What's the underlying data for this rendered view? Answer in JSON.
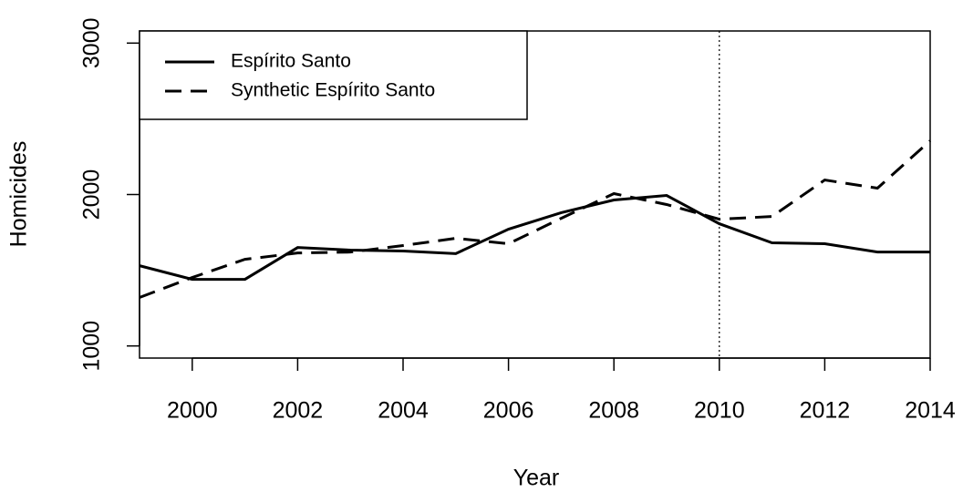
{
  "chart_data": {
    "type": "line",
    "x_label": "Year",
    "y_label": "Homicides",
    "x": [
      1999,
      2000,
      2001,
      2002,
      2003,
      2004,
      2005,
      2006,
      2007,
      2008,
      2009,
      2010,
      2011,
      2012,
      2013,
      2014
    ],
    "series": [
      {
        "name": "Espírito Santo",
        "color": "#000000",
        "linestyle": "solid",
        "values": [
          1530,
          1440,
          1440,
          1650,
          1633,
          1627,
          1610,
          1771,
          1880,
          1964,
          1994,
          1807,
          1681,
          1675,
          1620,
          1620
        ]
      },
      {
        "name": "Synthetic Espírito Santo",
        "color": "#000000",
        "linestyle": "dashed",
        "values": [
          1320,
          1452,
          1572,
          1614,
          1620,
          1663,
          1711,
          1675,
          1843,
          2006,
          1934,
          1837,
          1855,
          2096,
          2042,
          2355
        ]
      }
    ],
    "xlim": [
      1999,
      2014
    ],
    "xticks": [
      2000,
      2002,
      2004,
      2006,
      2008,
      2010,
      2012,
      2014
    ],
    "ylim": [
      920,
      3080
    ],
    "yticks": [
      1000,
      2000,
      3000
    ],
    "vline": 2010,
    "legend": "top-left"
  }
}
